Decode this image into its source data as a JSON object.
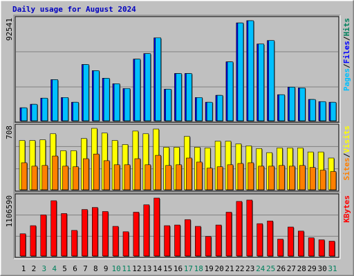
{
  "chart_data": [
    {
      "type": "bar",
      "title": "Daily usage for August 2024",
      "legend_separator": "/",
      "ylim": [
        0,
        92541
      ],
      "yticks": [
        92541
      ],
      "series": [
        {
          "name": "Pages",
          "color": "#00c0ff",
          "values": [
            12000,
            15200,
            20900,
            38000,
            21500,
            17100,
            52000,
            46300,
            39300,
            34200,
            29800,
            57000,
            62100,
            76700,
            29200,
            43700,
            43700,
            21500,
            17100,
            23500,
            54500,
            90500,
            92541,
            71000,
            74200,
            24100,
            31100,
            30400,
            19700,
            17700,
            17100
          ]
        },
        {
          "name": "Files",
          "color": "#0000ff",
          "values": [
            12000,
            15200,
            20900,
            38000,
            21500,
            17100,
            52000,
            46300,
            39300,
            34200,
            29800,
            57000,
            62100,
            76700,
            29200,
            43700,
            43700,
            21500,
            17100,
            23500,
            54500,
            90500,
            92541,
            71000,
            74200,
            24100,
            31100,
            30400,
            19700,
            17700,
            17100
          ]
        },
        {
          "name": "Hits",
          "color": "#00805c",
          "values": [
            12000,
            15200,
            20900,
            38000,
            21500,
            17100,
            52000,
            46300,
            39300,
            34200,
            29800,
            57000,
            62100,
            76700,
            29200,
            43700,
            43700,
            21500,
            17100,
            23500,
            54500,
            90500,
            92541,
            71000,
            74200,
            24100,
            31100,
            30400,
            19700,
            17700,
            17100
          ]
        }
      ]
    },
    {
      "type": "bar",
      "legend_separator": "/",
      "ylim": [
        0,
        708
      ],
      "yticks": [
        708
      ],
      "series": [
        {
          "name": "Sites",
          "color": "#ff8000",
          "values": [
            311,
            272,
            280,
            389,
            272,
            265,
            358,
            412,
            335,
            288,
            288,
            358,
            288,
            397,
            280,
            288,
            366,
            319,
            249,
            265,
            288,
            303,
            311,
            272,
            272,
            280,
            272,
            280,
            257,
            226,
            210
          ]
        },
        {
          "name": "Visits",
          "color": "#ffff00",
          "values": [
            568,
            568,
            576,
            646,
            451,
            451,
            591,
            708,
            654,
            568,
            521,
            677,
            646,
            700,
            490,
            490,
            615,
            490,
            482,
            560,
            560,
            529,
            506,
            475,
            428,
            482,
            482,
            482,
            436,
            436,
            366
          ]
        }
      ]
    },
    {
      "type": "bar",
      "ylim": [
        0,
        1106590
      ],
      "yticks": [
        1106590
      ],
      "series": [
        {
          "name": "KBytes",
          "color": "#ff0000",
          "values": [
            424600,
            579000,
            784900,
            1055100,
            810600,
            488900,
            887800,
            926400,
            849200,
            566100,
            463200,
            836400,
            977900,
            1106590,
            579000,
            591900,
            694800,
            566100,
            373100,
            591900,
            836400,
            1042200,
            1068000,
            617600,
            669100,
            321700,
            553300,
            476100,
            347400,
            308800,
            283100
          ]
        }
      ],
      "categories": [
        "1",
        "2",
        "3",
        "4",
        "5",
        "6",
        "7",
        "8",
        "9",
        "10",
        "11",
        "12",
        "13",
        "14",
        "15",
        "16",
        "17",
        "18",
        "19",
        "20",
        "21",
        "22",
        "23",
        "24",
        "25",
        "26",
        "27",
        "28",
        "29",
        "30",
        "31"
      ],
      "category_colors": [
        "#000000",
        "#000000",
        "#00805c",
        "#00805c",
        "#000000",
        "#000000",
        "#000000",
        "#000000",
        "#000000",
        "#00805c",
        "#00805c",
        "#000000",
        "#000000",
        "#000000",
        "#000000",
        "#000000",
        "#00805c",
        "#00805c",
        "#000000",
        "#000000",
        "#000000",
        "#000000",
        "#000000",
        "#00805c",
        "#00805c",
        "#000000",
        "#000000",
        "#000000",
        "#000000",
        "#000000",
        "#00805c"
      ]
    }
  ]
}
